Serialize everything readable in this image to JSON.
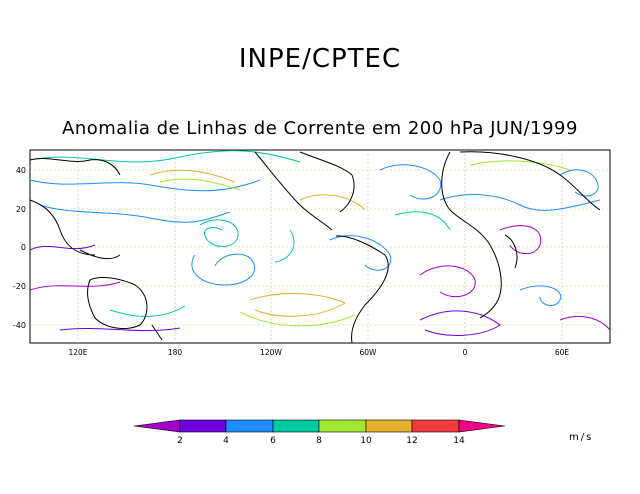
{
  "header": {
    "org": "INPE/CPTEC",
    "title": "Anomalia de Linhas de Corrente em 200 hPa JUN/1999"
  },
  "map": {
    "lat_labels": [
      "40",
      "20",
      "0",
      "-20",
      "-40"
    ],
    "lon_labels": [
      "120E",
      "180",
      "120W",
      "60W",
      "0",
      "60E"
    ]
  },
  "legend": {
    "units": "m/s",
    "ticks": [
      "2",
      "4",
      "6",
      "8",
      "10",
      "12",
      "14"
    ],
    "colors": [
      "#a000c8",
      "#6e00dc",
      "#1e8cff",
      "#00c8a0",
      "#a0e632",
      "#e6af2d",
      "#f03c3c",
      "#f00082"
    ]
  }
}
